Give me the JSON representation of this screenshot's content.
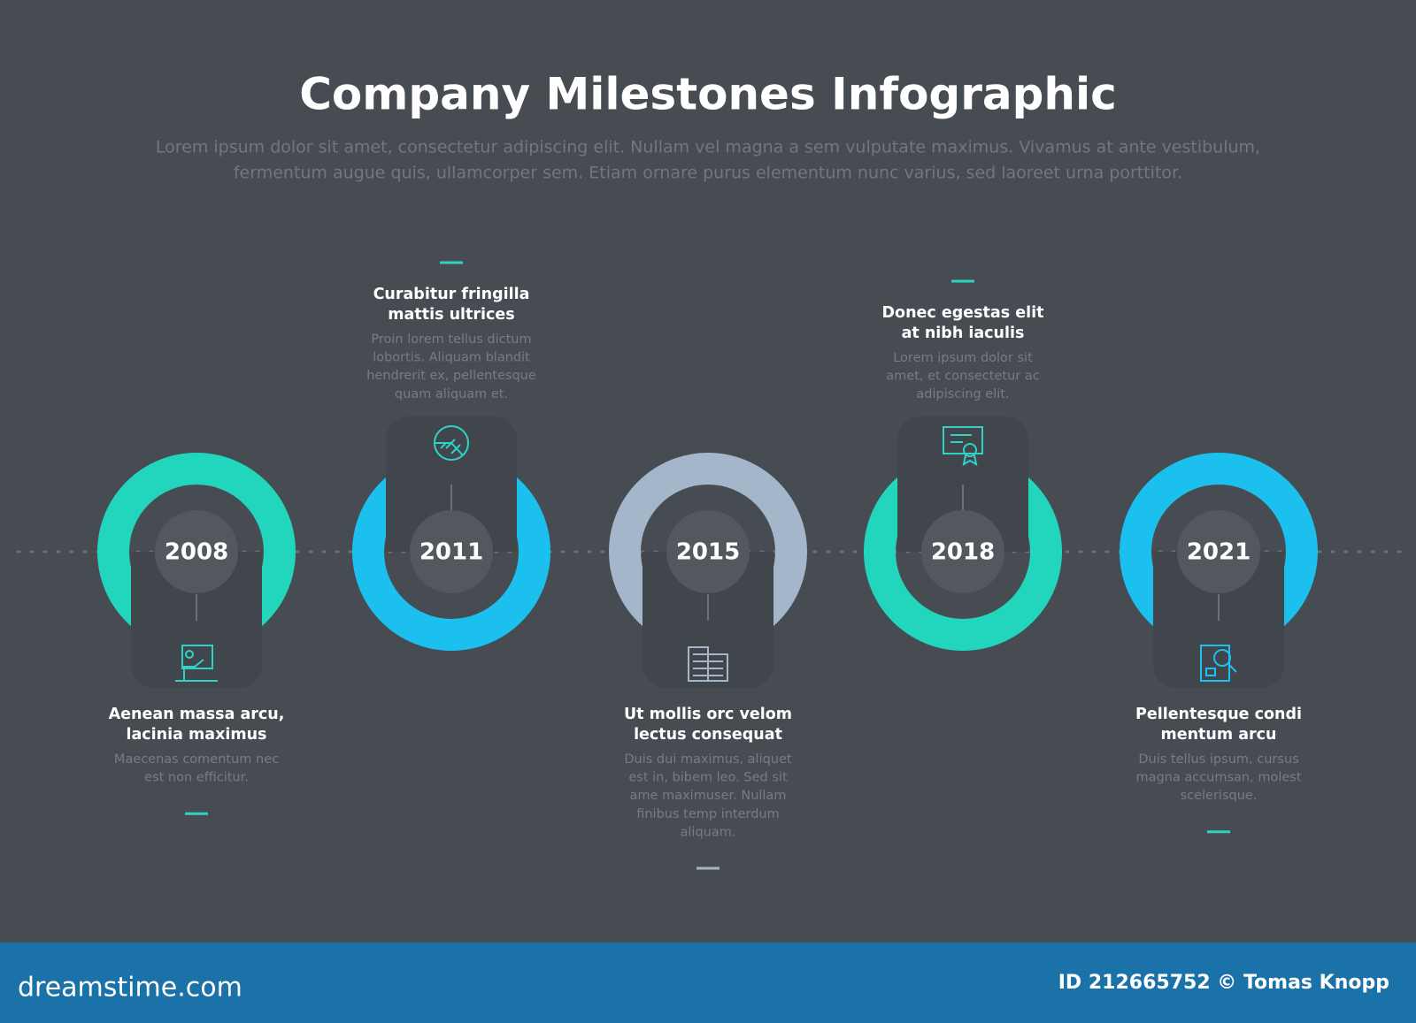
{
  "title": "Company Milestones Infographic",
  "subtitle": [
    "Lorem ipsum dolor sit amet, consectetur adipiscing elit. Nullam vel magna a sem vulputate maximus. Vivamus at ante vestibulum,",
    "fermentum augue quis, ullamcorper sem. Etiam ornare purus elementum nunc varius, sed laoreet urna porttitor."
  ],
  "milestones": [
    {
      "year": "2008",
      "color": "#22d6bd",
      "heading": [
        "Aenean massa arcu,",
        "lacinia maximus"
      ],
      "body": [
        "Maecenas comentum nec",
        "est non efficitur."
      ]
    },
    {
      "year": "2011",
      "color": "#1cc0ee",
      "heading": [
        "Curabitur fringilla",
        "mattis ultrices"
      ],
      "body": [
        "Proin lorem tellus dictum",
        "lobortis. Aliquam blandit",
        "hendrerit ex, pellentesque",
        "quam aliquam et."
      ]
    },
    {
      "year": "2015",
      "color": "#a3b6ca",
      "heading": [
        "Ut mollis orc velom",
        "lectus consequat"
      ],
      "body": [
        "Duis dui maximus, aliquet",
        "est in, bibem leo. Sed sit",
        "ame maximuser. Nullam",
        "finibus temp interdum",
        "aliquam."
      ]
    },
    {
      "year": "2018",
      "color": "#22d6bd",
      "heading": [
        "Donec egestas elit",
        "at nibh iaculis"
      ],
      "body": [
        "Lorem ipsum dolor sit",
        "amet, et consectetur ac",
        "adipiscing elit."
      ]
    },
    {
      "year": "2021",
      "color": "#1cc0ee",
      "heading": [
        "Pellentesque condi",
        "mentum arcu"
      ],
      "body": [
        "Duis tellus ipsum, cursus",
        "magna accumsan, molest",
        "scelerisque."
      ]
    }
  ],
  "footer": {
    "site": "dreamstime.com",
    "credit": "ID 212665752 © Tomas Knopp"
  }
}
